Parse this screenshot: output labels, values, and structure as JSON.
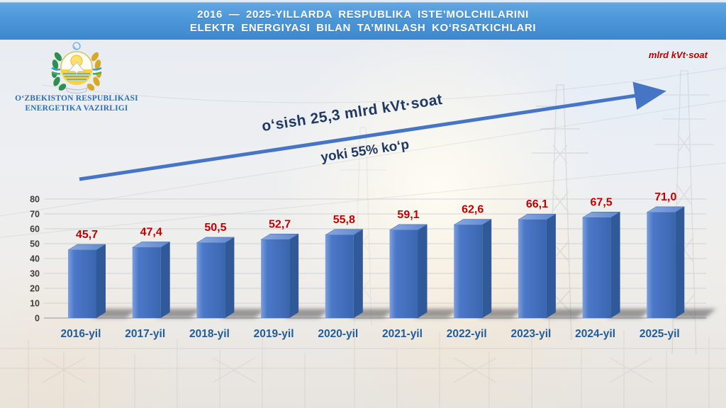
{
  "banner": {
    "line1": "2016 — 2025-YILLARDA  RESPUBLIKA  ISTE’MOLCHILARINI",
    "line2": "ELEKTR ENERGIYASI  BILAN  TA’MINLASH  KOʻRSATKICHLARI"
  },
  "logo": {
    "org_line1": "OʻZBEKISTON RESPUBLIKASI",
    "org_line2": "ENERGETIKA VAZIRLIGI"
  },
  "unit_label": "mlrd kVt·soat",
  "annotation": {
    "growth_text": "oʻsish  25,3 mlrd kVt·soat",
    "percent_text": "yoki 55% koʻp"
  },
  "chart_data": {
    "type": "bar",
    "title": "2016 — 2025-yillarda respublika isteʼmolchilarini elektr energiyasi bilan taʼminlash koʻrsatkichlari",
    "categories": [
      "2016-yil",
      "2017-yil",
      "2018-yil",
      "2019-yil",
      "2020-yil",
      "2021-yil",
      "2022-yil",
      "2023-yil",
      "2024-yil",
      "2025-yil"
    ],
    "values": [
      45.7,
      47.4,
      50.5,
      52.7,
      55.8,
      59.1,
      62.6,
      66.1,
      67.5,
      71.0
    ],
    "value_labels": [
      "45,7",
      "47,4",
      "50,5",
      "52,7",
      "55,8",
      "59,1",
      "62,6",
      "66,1",
      "67,5",
      "71,0"
    ],
    "xlabel": "",
    "ylabel": "mlrd kVt·soat",
    "ylim": [
      0,
      80
    ],
    "ytick_step": 10,
    "grid": true,
    "legend": "none",
    "style_3d": true
  },
  "colors": {
    "banner_blue": "#4f9ada",
    "bar_front": "#4472c4",
    "bar_top": "#7096d8",
    "bar_side": "#2f5999",
    "value_label": "#c00000",
    "axis_label": "#1f5c99",
    "tick_label": "#3d3d3d",
    "arrow": "#4575c4",
    "annotation_navy": "#1f3864",
    "unit_red": "#c00000",
    "logo_blue": "#2b6fc0"
  }
}
